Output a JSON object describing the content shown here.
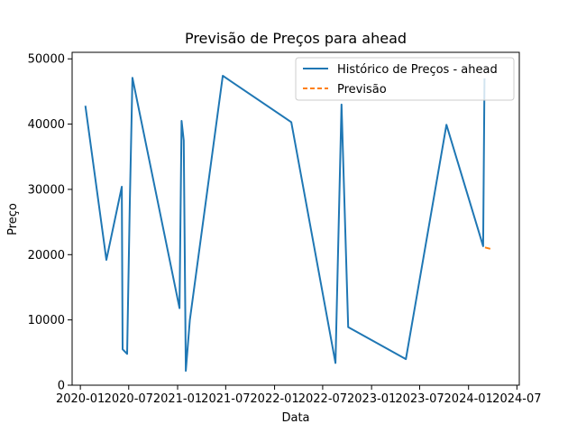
{
  "chart_data": {
    "type": "line",
    "title": "Previsão de Preços para ahead",
    "xlabel": "Data",
    "ylabel": "Preço",
    "xlim": [
      "2019-12-01",
      "2024-07-10"
    ],
    "ylim": [
      0,
      51000
    ],
    "x_ticks": [
      "2020-01",
      "2020-07",
      "2021-01",
      "2021-07",
      "2022-01",
      "2022-07",
      "2023-01",
      "2023-07",
      "2024-01",
      "2024-07"
    ],
    "x_tick_labels": [
      "2020-01",
      "2020-07",
      "2021-01",
      "2021-07",
      "2022-01",
      "2022-07",
      "2023-01",
      "2023-07",
      "2024-01",
      "2024-07"
    ],
    "y_ticks": [
      0,
      10000,
      20000,
      30000,
      40000,
      50000
    ],
    "y_tick_labels": [
      "0",
      "10000",
      "20000",
      "30000",
      "40000",
      "50000"
    ],
    "legend_position": "top-right",
    "series": [
      {
        "name": "Histórico de Preços - ahead",
        "color": "#1f77b4",
        "style": "solid",
        "points": [
          [
            "2020-01-20",
            42800
          ],
          [
            "2020-04-08",
            19200
          ],
          [
            "2020-06-05",
            30400
          ],
          [
            "2020-06-08",
            5500
          ],
          [
            "2020-06-25",
            4800
          ],
          [
            "2020-07-05",
            28000
          ],
          [
            "2020-07-15",
            47100
          ],
          [
            "2021-01-08",
            11800
          ],
          [
            "2021-01-16",
            40500
          ],
          [
            "2021-01-24",
            37500
          ],
          [
            "2021-02-01",
            2200
          ],
          [
            "2021-02-16",
            10000
          ],
          [
            "2021-06-20",
            47400
          ],
          [
            "2022-03-05",
            40300
          ],
          [
            "2022-08-18",
            3400
          ],
          [
            "2022-09-10",
            43000
          ],
          [
            "2022-10-05",
            8900
          ],
          [
            "2023-05-10",
            4000
          ],
          [
            "2023-10-10",
            39900
          ],
          [
            "2024-02-25",
            21300
          ],
          [
            "2024-03-01",
            47000
          ]
        ]
      },
      {
        "name": "Previsão",
        "color": "#ff7f0e",
        "style": "dashed",
        "points": [
          [
            "2024-03-03",
            21100
          ],
          [
            "2024-04-01",
            20800
          ]
        ]
      }
    ]
  }
}
